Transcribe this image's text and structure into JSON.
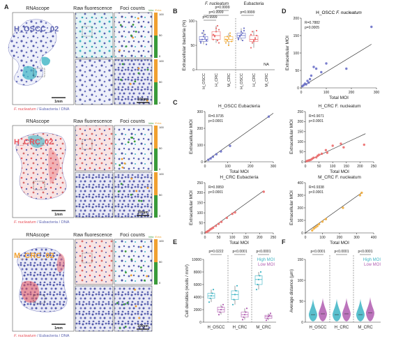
{
  "panel_a": {
    "letter": "A",
    "samples": [
      {
        "id": "H_OSCC_02",
        "header_rnascope": "RNAscope",
        "header_raw": "Raw fluorescence",
        "header_foci": "Foci counts",
        "legend_intra": "Intra",
        "legend_extra": "/Extra",
        "scale_ticks": [
          "100",
          "50",
          "0",
          "100",
          "50",
          "0"
        ],
        "scalebar_overview": "1mm",
        "scalebar_zoom": "100µm",
        "caption_fn": "F. nucleatum",
        "caption_rest": " / Eubacteria / DNA",
        "id_color": "#5b62b0"
      },
      {
        "id": "H_CRC_02",
        "header_rnascope": "RNAscope",
        "header_raw": "Raw fluorescence",
        "header_foci": "Foci counts",
        "legend_intra": "Intra",
        "legend_extra": "/Extra",
        "scale_ticks": [
          "100",
          "50",
          "0",
          "100",
          "50",
          "0"
        ],
        "scalebar_overview": "1mm",
        "scalebar_zoom": "100µm",
        "caption_fn": "F. nucleatum",
        "caption_rest": " / Eubacteria / DNA",
        "id_color": "#e8525b"
      },
      {
        "id": "M_CRC_02",
        "header_rnascope": "RNAscope",
        "header_raw": "Raw fluorescence",
        "header_foci": "Foci counts",
        "legend_intra": "Intra",
        "legend_extra": "/Extra",
        "scale_ticks": [
          "100",
          "50",
          "0"
        ],
        "scalebar_overview": "1mm",
        "scalebar_zoom": "100µm",
        "caption_fn": "F. nucleatum",
        "caption_rest": " / Eubacteria / DNA",
        "id_color": "#f0a030"
      }
    ]
  },
  "colors": {
    "h_oscc": "#6a70c8",
    "h_crc": "#ec6b6b",
    "m_crc": "#f2ad3c",
    "high_moi": "#3cb4c4",
    "low_moi": "#b05cb0",
    "intra": "#3a9a3a",
    "extra": "#f0a030",
    "dna": "#5b62b0",
    "eub": "#3cb4c4",
    "fn": "#e8525b"
  },
  "chart_data": [
    {
      "panel": "B",
      "type": "box",
      "ylabel": "Extracellular bacteria (%)",
      "ylim": [
        0,
        100
      ],
      "yticks": [
        "0",
        "50",
        "100"
      ],
      "group_titles": [
        {
          "text": "F. nucleatum",
          "italic": true
        },
        {
          "text": "Eubacteria",
          "italic": false
        }
      ],
      "pvalues": [
        "p=0.9999",
        "p=0.9999",
        "p=0.9999",
        "p=0.9999"
      ],
      "categories": [
        "H_OSCC",
        "H_CRC",
        "M_CRC",
        "H_OSCC",
        "H_CRC",
        "M_CRC"
      ],
      "na_label": "NA",
      "series": [
        {
          "values": [
            55,
            62,
            68,
            72,
            60,
            58,
            75,
            80,
            65,
            52
          ]
        },
        {
          "values": [
            62,
            70,
            85,
            90,
            55,
            72,
            68,
            78,
            60,
            82
          ]
        },
        {
          "values": [
            55,
            60,
            65,
            70,
            58,
            62,
            68,
            50,
            75
          ]
        },
        {
          "values": [
            62,
            68,
            72,
            75,
            80,
            65,
            70,
            78,
            60,
            85
          ]
        },
        {
          "values": [
            45,
            55,
            60,
            65,
            70,
            72,
            78,
            58,
            62,
            80
          ]
        },
        {
          "values": []
        }
      ]
    },
    {
      "panel": "C",
      "type": "scatter",
      "title": "H_OSCC Eubacteria",
      "stat_r": "R=0.9735",
      "stat_p": "p<0.0001",
      "xlabel": "Total MOI",
      "ylabel": "Extracellular MOI",
      "xlim": [
        0,
        300
      ],
      "ylim": [
        0,
        300
      ],
      "xticks": [
        "0",
        "100",
        "200",
        "300"
      ],
      "yticks": [
        "0",
        "100",
        "200",
        "300"
      ],
      "fit": [
        [
          0,
          0
        ],
        [
          300,
          290
        ]
      ],
      "points": [
        [
          15,
          12
        ],
        [
          25,
          20
        ],
        [
          35,
          30
        ],
        [
          50,
          45
        ],
        [
          70,
          62
        ],
        [
          110,
          95
        ],
        [
          280,
          270
        ]
      ]
    },
    {
      "panel": "C2",
      "type": "scatter",
      "title": "H_CRC F. nucleatum",
      "stat_r": "R=0.9071",
      "stat_p": "p<0.0001",
      "xlabel": "Total MOI",
      "ylabel": "Extracellular MOI",
      "xlim": [
        0,
        250
      ],
      "ylim": [
        0,
        250
      ],
      "xticks": [
        "0",
        "50",
        "100",
        "150",
        "200",
        "250"
      ],
      "yticks": [
        "0",
        "50",
        "100",
        "150",
        "200",
        "250"
      ],
      "fit": [
        [
          0,
          0
        ],
        [
          220,
          140
        ]
      ],
      "points": [
        [
          5,
          3
        ],
        [
          10,
          6
        ],
        [
          15,
          8
        ],
        [
          20,
          10
        ],
        [
          25,
          15
        ],
        [
          30,
          20
        ],
        [
          40,
          22
        ],
        [
          45,
          30
        ],
        [
          50,
          35
        ],
        [
          60,
          40
        ],
        [
          75,
          58
        ],
        [
          80,
          45
        ],
        [
          100,
          80
        ],
        [
          130,
          90
        ],
        [
          140,
          72
        ],
        [
          215,
          85
        ]
      ]
    },
    {
      "panel": "C3",
      "type": "scatter",
      "title": "H_CRC Eubacteria",
      "stat_r": "R=0.9959",
      "stat_p": "p<0.0001",
      "xlabel": "Total MOI",
      "ylabel": "Extracellular MOI",
      "xlim": [
        0,
        250
      ],
      "ylim": [
        0,
        250
      ],
      "xticks": [
        "0",
        "50",
        "100",
        "150",
        "200",
        "250"
      ],
      "yticks": [
        "0",
        "50",
        "100",
        "150",
        "200",
        "250"
      ],
      "fit": [
        [
          0,
          0
        ],
        [
          215,
          210
        ]
      ],
      "points": [
        [
          5,
          4
        ],
        [
          10,
          8
        ],
        [
          15,
          12
        ],
        [
          20,
          18
        ],
        [
          25,
          22
        ],
        [
          30,
          26
        ],
        [
          40,
          35
        ],
        [
          50,
          45
        ],
        [
          60,
          55
        ],
        [
          80,
          75
        ],
        [
          100,
          95
        ],
        [
          110,
          102
        ],
        [
          215,
          205
        ]
      ]
    },
    {
      "panel": "C4",
      "type": "scatter",
      "title": "M_CRC F. nucleatum",
      "stat_r": "R=0.9338",
      "stat_p": "p<0.0001",
      "xlabel": "Total MOI",
      "ylabel": "Extracellular MOI",
      "xlim": [
        0,
        400
      ],
      "ylim": [
        0,
        400
      ],
      "xticks": [
        "0",
        "100",
        "200",
        "300",
        "400"
      ],
      "yticks": [
        "0",
        "100",
        "200",
        "300",
        "400"
      ],
      "fit": [
        [
          0,
          0
        ],
        [
          330,
          320
        ]
      ],
      "points": [
        [
          40,
          20
        ],
        [
          50,
          35
        ],
        [
          60,
          45
        ],
        [
          70,
          55
        ],
        [
          80,
          70
        ],
        [
          100,
          90
        ],
        [
          120,
          110
        ],
        [
          220,
          200
        ],
        [
          320,
          300
        ],
        [
          330,
          320
        ]
      ]
    },
    {
      "panel": "D",
      "type": "scatter",
      "title_plain": "H_OSCC ",
      "title_italic": "F. nucleatum",
      "stat_r": "R=0.7882",
      "stat_p": "p=0.0005",
      "xlabel": "Total MOI",
      "ylabel": "Extracellular MOI",
      "xlim": [
        0,
        300
      ],
      "ylim": [
        0,
        200
      ],
      "xticks": [
        "0",
        "100",
        "200",
        "300"
      ],
      "yticks": [
        "0",
        "50",
        "100",
        "150",
        "200"
      ],
      "fit": [
        [
          0,
          2
        ],
        [
          280,
          125
        ]
      ],
      "points": [
        [
          5,
          5
        ],
        [
          10,
          8
        ],
        [
          15,
          12
        ],
        [
          20,
          10
        ],
        [
          25,
          20
        ],
        [
          30,
          15
        ],
        [
          35,
          25
        ],
        [
          40,
          35
        ],
        [
          50,
          60
        ],
        [
          60,
          55
        ],
        [
          80,
          45
        ],
        [
          100,
          70
        ],
        [
          180,
          55
        ],
        [
          280,
          175
        ]
      ]
    },
    {
      "panel": "E",
      "type": "box",
      "ylabel": "Cell densities (#cells / mm²)",
      "ylim": [
        0,
        10000
      ],
      "yticks": [
        "0",
        "2000",
        "4000",
        "6000",
        "8000",
        "10000"
      ],
      "pvalues": [
        "p=0.0222",
        "p<0.0001",
        "p<0.0001"
      ],
      "categories": [
        "H_OSCC",
        "H_CRC",
        "M_CRC"
      ],
      "legend": [
        "High MOI",
        "Low MOI"
      ],
      "series": [
        {
          "name": "High MOI",
          "values": [
            [
              3200,
              3800,
              4200,
              4600,
              5200
            ],
            [
              2800,
              3600,
              4400,
              5000,
              5800
            ],
            [
              5200,
              6000,
              6800,
              7400,
              8000
            ]
          ]
        },
        {
          "name": "Low MOI",
          "values": [
            [
              1200,
              1600,
              2000,
              2400,
              2800
            ],
            [
              400,
              800,
              1200,
              1600,
              2200
            ],
            [
              300,
              600,
              900,
              1100,
              1400
            ]
          ]
        }
      ]
    },
    {
      "panel": "F",
      "type": "violin",
      "ylabel": "Average distance (µm)",
      "ylim": [
        0,
        150
      ],
      "yticks": [
        "0",
        "50",
        "100",
        "150"
      ],
      "pvalues": [
        "p<0.0001",
        "p<0.0001",
        "p<0.0001"
      ],
      "categories": [
        "H_OSCC",
        "H_CRC",
        "M_CRC"
      ],
      "legend": [
        "High MOI",
        "Low MOI"
      ],
      "series": [
        {
          "name": "High MOI",
          "values": [
            18,
            18,
            18
          ]
        },
        {
          "name": "Low MOI",
          "values": [
            20,
            20,
            22
          ]
        }
      ]
    }
  ],
  "panel_letters": {
    "b": "B",
    "c": "C",
    "d": "D",
    "e": "E",
    "f": "F"
  }
}
